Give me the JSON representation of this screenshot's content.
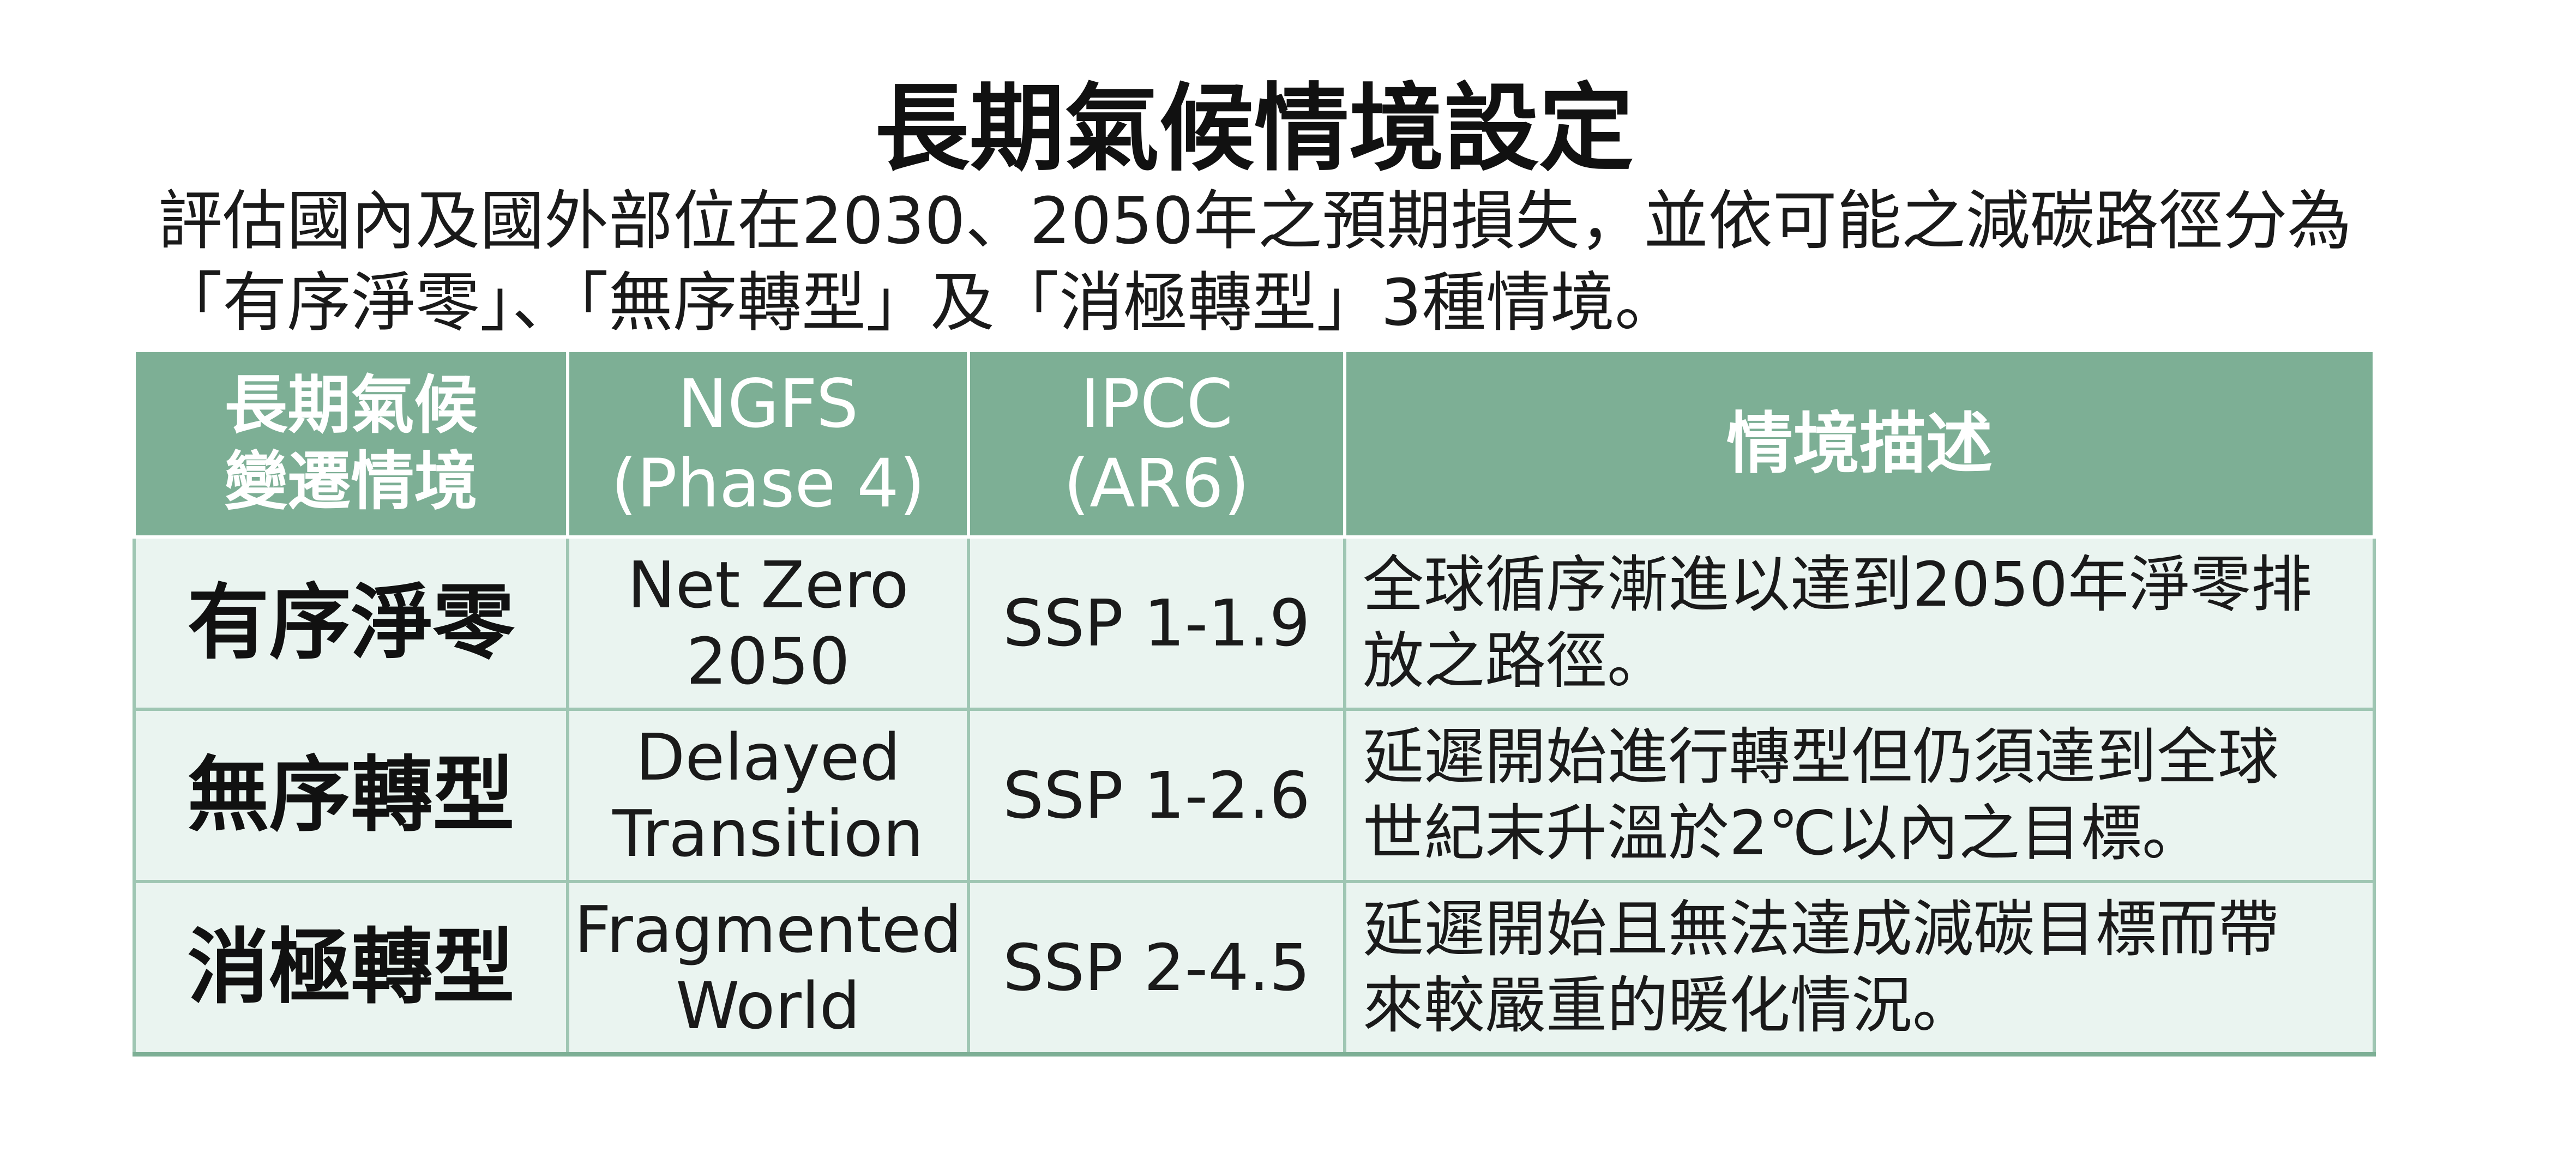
{
  "title": "長期氣候情境設定",
  "intro": {
    "line1": "評估國內及國外部位在2030、2050年之預期損失，並依可能之減碳路徑分為",
    "line2": "「有序淨零」、「無序轉型」及「消極轉型」3種情境。"
  },
  "table": {
    "headers": {
      "scenario": [
        "長期氣候",
        "變遷情境"
      ],
      "ngfs": [
        "NGFS",
        "(Phase 4)"
      ],
      "ipcc": [
        "IPCC",
        "(AR6)"
      ],
      "description": "情境描述"
    },
    "rows": [
      {
        "scenario": "有序淨零",
        "ngfs": [
          "Net Zero",
          "2050"
        ],
        "ipcc": "SSP 1-1.9",
        "description": [
          "全球循序漸進以達到2050年淨零排",
          "放之路徑。"
        ]
      },
      {
        "scenario": "無序轉型",
        "ngfs": [
          "Delayed",
          "Transition"
        ],
        "ipcc": "SSP 1-2.6",
        "description": [
          "延遲開始進行轉型但仍須達到全球",
          "世紀末升溫於2℃以內之目標。"
        ]
      },
      {
        "scenario": "消極轉型",
        "ngfs": [
          "Fragmented",
          "World"
        ],
        "ipcc": "SSP 2-4.5",
        "description": [
          "延遲開始且無法達成減碳目標而帶",
          "來較嚴重的暖化情況。"
        ]
      }
    ]
  },
  "colors": {
    "header_bg": "#7daf95",
    "row_bg": "#eaf4f0",
    "border": "#9fc6b3"
  }
}
